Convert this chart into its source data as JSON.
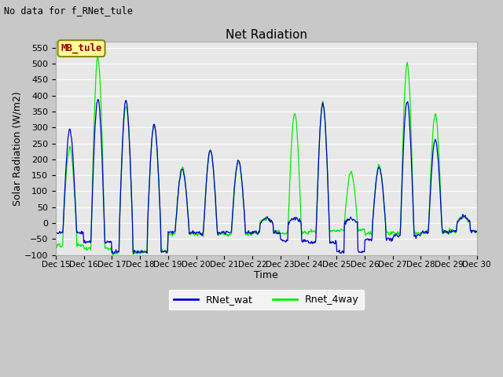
{
  "title": "Net Radiation",
  "subtitle": "No data for f_RNet_tule",
  "xlabel": "Time",
  "ylabel": "Solar Radiation (W/m2)",
  "annotation_label": "MB_tule",
  "ylim": [
    -100,
    570
  ],
  "yticks": [
    -100,
    -50,
    0,
    50,
    100,
    150,
    200,
    250,
    300,
    350,
    400,
    450,
    500,
    550
  ],
  "xstart": 15,
  "xend": 30,
  "xtick_labels": [
    "Dec 15",
    "Dec 16",
    "Dec 17",
    "Dec 18",
    "Dec 19",
    "Dec 20",
    "Dec 21",
    "Dec 22",
    "Dec 23",
    "Dec 24",
    "Dec 25",
    "Dec 26",
    "Dec 27",
    "Dec 28",
    "Dec 29",
    "Dec 30"
  ],
  "line1_color": "#0000cc",
  "line2_color": "#00ee00",
  "line1_label": "RNet_wat",
  "line2_label": "Rnet_4way",
  "fig_bg_color": "#c8c8c8",
  "plot_bg_color": "#e8e8e8",
  "grid_color": "#ffffff",
  "annotation_bg": "#ffff99",
  "annotation_edge": "#888800",
  "annotation_text_color": "#990000"
}
